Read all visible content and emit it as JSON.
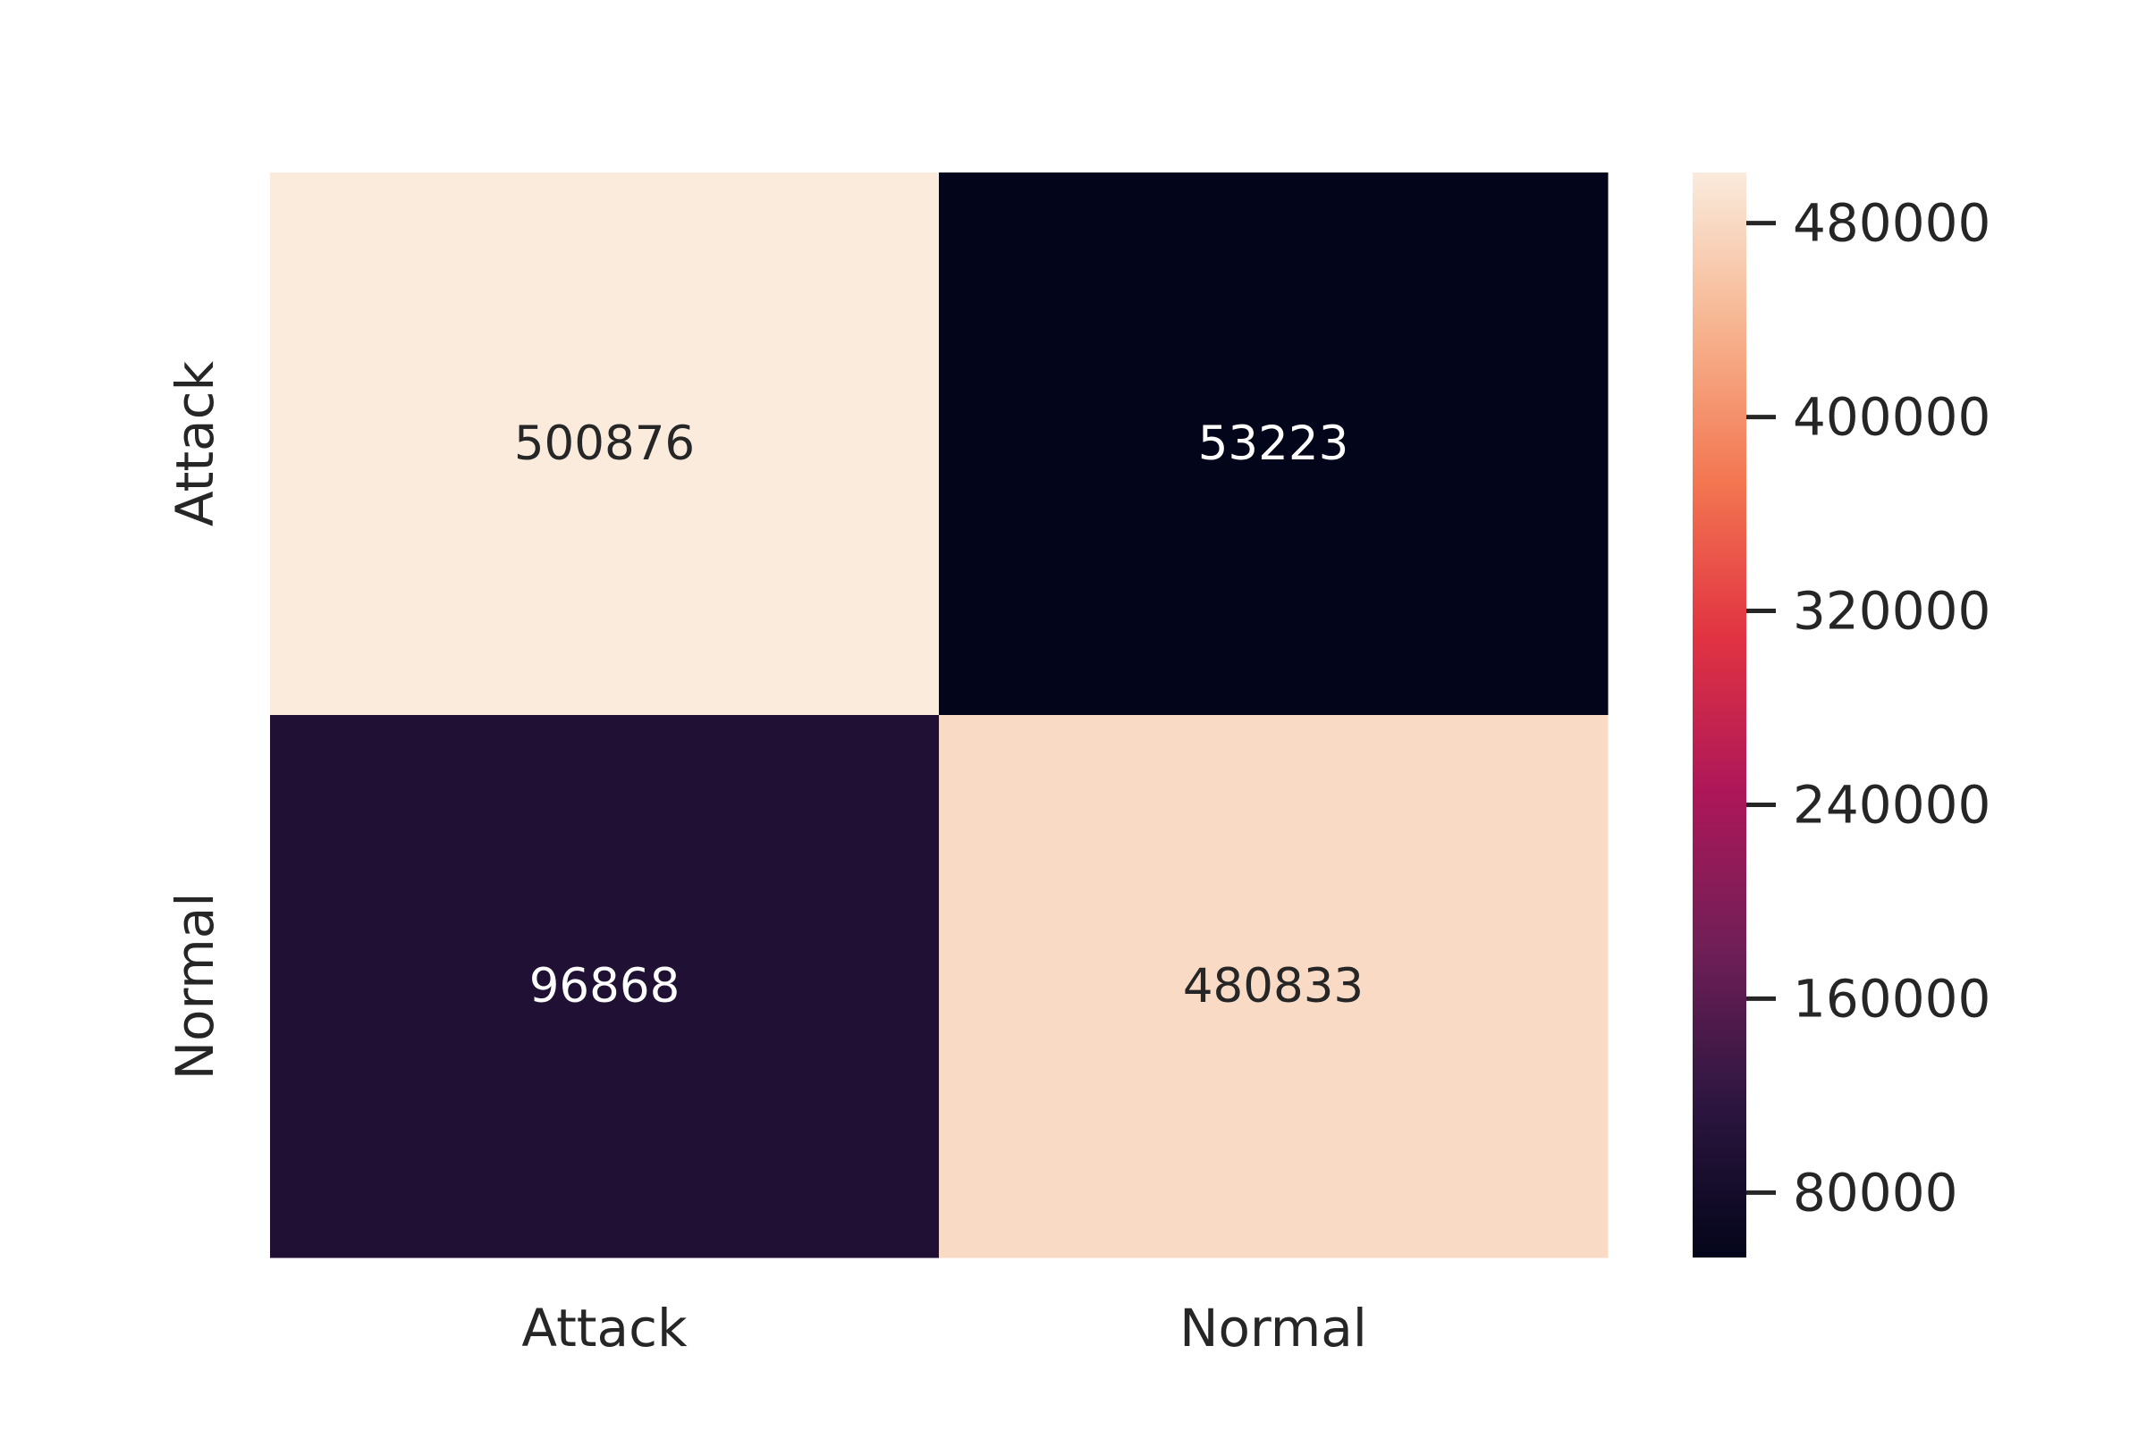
{
  "chart_data": {
    "type": "heatmap",
    "title": "",
    "xlabel": "",
    "ylabel": "",
    "x_categories": [
      "Attack",
      "Normal"
    ],
    "y_categories": [
      "Attack",
      "Normal"
    ],
    "values": [
      [
        500876,
        53223
      ],
      [
        96868,
        480833
      ]
    ],
    "colormap": "rocket",
    "colorbar": {
      "ticks": [
        80000,
        160000,
        240000,
        320000,
        400000,
        480000
      ],
      "tick_labels": [
        "80000",
        "160000",
        "240000",
        "320000",
        "400000",
        "480000"
      ],
      "range": [
        53223,
        500876
      ],
      "colors": [
        "#03051a",
        "#2d1640",
        "#701f57",
        "#ad1759",
        "#e13342",
        "#f37651",
        "#f6b48f",
        "#faebdd"
      ]
    },
    "annotations": [
      "500876",
      "53223",
      "96868",
      "480833"
    ],
    "annotation_colors": {
      "light": "#ffffff",
      "dark": "#262626"
    },
    "grid": false,
    "legend": "colorbar-right"
  }
}
